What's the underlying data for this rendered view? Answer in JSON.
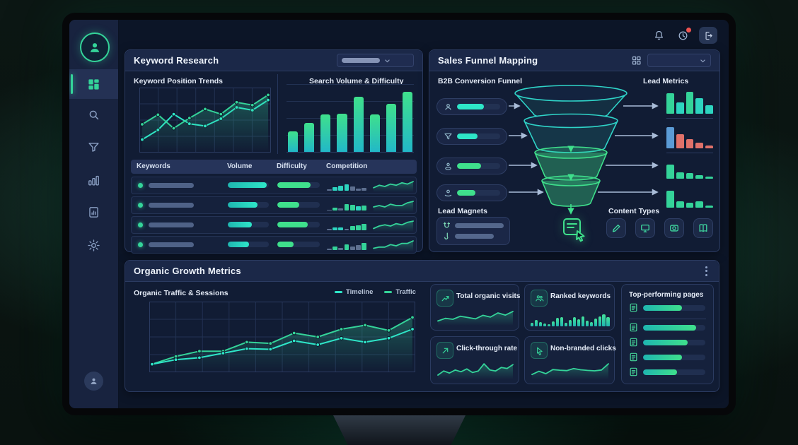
{
  "colors": {
    "teal": "#2dd4bf",
    "green": "#34d399",
    "bright-green": "#3fe08c",
    "blue": "#5b9bd5",
    "red": "#e0716a",
    "slate": "#5d6f8f"
  },
  "mini_colors": {
    "t": "#2dd4bf",
    "g": "#34d399",
    "s": "#5d6f8f"
  },
  "topbar": {
    "icons": [
      "bell",
      "history",
      "logout"
    ],
    "history_badge": true
  },
  "sidebar": {
    "items": [
      "profile",
      "dashboard",
      "search",
      "filter",
      "analytics",
      "reports",
      "settings"
    ],
    "active": "dashboard"
  },
  "panels": {
    "keyword_research": {
      "title": "Keyword Research",
      "filter_dropdown": {
        "value": ""
      },
      "sections": {
        "position_trends": "Keyword Position Trends",
        "volume_difficulty": "Search Volume & Difficulty"
      },
      "table": {
        "columns": [
          "Keywords",
          "Volume",
          "Difficulty",
          "Competition"
        ],
        "rows": [
          {
            "volume_pct": 95,
            "difficulty_pct": 78,
            "competition": {
              "values": [
                14,
                34,
                48,
                62,
                38,
                22,
                30
              ],
              "colors": [
                "s",
                "t",
                "t",
                "t",
                "s",
                "s",
                "s"
              ]
            },
            "trend": [
              3,
              5,
              4,
              6,
              5,
              7,
              6,
              8
            ]
          },
          {
            "volume_pct": 72,
            "difficulty_pct": 52,
            "competition": {
              "values": [
                10,
                28,
                18,
                58,
                52,
                42,
                50
              ],
              "colors": [
                "s",
                "g",
                "s",
                "g",
                "g",
                "t",
                "g"
              ]
            },
            "trend": [
              3,
              4,
              3,
              5,
              4,
              4,
              6,
              7
            ]
          },
          {
            "volume_pct": 58,
            "difficulty_pct": 72,
            "competition": {
              "values": [
                12,
                30,
                26,
                16,
                40,
                46,
                60
              ],
              "colors": [
                "s",
                "t",
                "t",
                "s",
                "g",
                "g",
                "g"
              ]
            },
            "trend": [
              2,
              4,
              5,
              4,
              6,
              5,
              7,
              8
            ]
          },
          {
            "volume_pct": 52,
            "difficulty_pct": 38,
            "competition": {
              "values": [
                12,
                34,
                22,
                52,
                34,
                44,
                64
              ],
              "colors": [
                "s",
                "g",
                "s",
                "g",
                "s",
                "s",
                "g"
              ]
            },
            "trend": [
              2,
              3,
              3,
              5,
              4,
              6,
              6,
              8
            ]
          }
        ]
      }
    },
    "sales_funnel": {
      "title": "Sales Funnel Mapping",
      "view_dropdown": {
        "value": ""
      },
      "funnel_label": "B2B Conversion Funnel",
      "lead_metrics_label": "Lead Metrics",
      "lead_magnets_label": "Lead Magnets",
      "content_types_label": "Content Types",
      "stages": [
        {
          "icon": "user",
          "pill_pct": 62,
          "color": "#2ee6c8"
        },
        {
          "icon": "filter",
          "pill_pct": 48,
          "color": "#2ee6c8"
        },
        {
          "icon": "lead",
          "pill_pct": 55,
          "color": "#3fe08c"
        },
        {
          "icon": "conversion",
          "pill_pct": 42,
          "color": "#3fe08c"
        }
      ],
      "lead_magnet_pills": [
        80,
        64
      ],
      "content_types": [
        "pencil",
        "display",
        "video",
        "book"
      ]
    },
    "organic": {
      "title": "Organic Growth Metrics",
      "chart_label": "Organic Traffic & Sessions",
      "cards": [
        {
          "label": "Total organic visits",
          "icon": "trend-up",
          "chart": "total_organic_visits_spark"
        },
        {
          "label": "Ranked keywords",
          "icon": "people",
          "chart": "ranked_keywords_bars"
        },
        {
          "label": "Click-through rate",
          "icon": "arrow-up-right",
          "chart": "click_through_rate_spark"
        },
        {
          "label": "Non-branded clicks",
          "icon": "pointer",
          "chart": "non_branded_clicks_spark"
        }
      ],
      "pages_card": {
        "label": "Top-performing pages",
        "rows": [
          62,
          85,
          72,
          62,
          55
        ]
      }
    }
  },
  "chart_data": [
    {
      "id": "keyword_position_trends",
      "type": "line",
      "title": "Keyword Position Trends",
      "grid": [
        7,
        4
      ],
      "ylim": [
        0,
        105
      ],
      "series": [
        {
          "name": "positions-secondary",
          "color": "#2ee6c8",
          "dots": true,
          "values": [
            18,
            35,
            63,
            46,
            42,
            55,
            75,
            70,
            88
          ]
        },
        {
          "name": "positions-primary",
          "color": "#34d399",
          "dots": true,
          "area": true,
          "values": [
            45,
            62,
            38,
            56,
            72,
            63,
            84,
            79,
            97
          ]
        }
      ]
    },
    {
      "id": "search_volume_difficulty",
      "type": "bar",
      "title": "Search Volume & Difficulty",
      "ylim": [
        0,
        100
      ],
      "gradient": [
        "#22b8c8",
        "#3fe08c"
      ],
      "values": [
        30,
        42,
        55,
        56,
        80,
        55,
        70,
        88
      ]
    },
    {
      "id": "organic_traffic_sessions",
      "type": "line",
      "title": "Organic Traffic & Sessions",
      "grid": [
        10,
        4
      ],
      "ylim": [
        0,
        100
      ],
      "legend": [
        "Timeline",
        "Traffic"
      ],
      "series": [
        {
          "name": "Traffic",
          "color": "#34d399",
          "dots": true,
          "area": true,
          "values": [
            8,
            20,
            28,
            28,
            42,
            40,
            56,
            50,
            62,
            68,
            60,
            80
          ]
        },
        {
          "name": "Timeline",
          "color": "#2ee6c8",
          "dots": true,
          "values": [
            8,
            15,
            18,
            25,
            32,
            31,
            44,
            38,
            48,
            42,
            48,
            62
          ]
        }
      ]
    },
    {
      "id": "lead_metrics",
      "type": "bar-group",
      "charts": [
        {
          "values": [
            80,
            45,
            85,
            62,
            32
          ],
          "colors": [
            "#34d399",
            "#2dd4bf",
            "#34d399",
            "#2dd4bf",
            "#2dd4bf"
          ]
        },
        {
          "values": [
            82,
            55,
            35,
            22,
            12
          ],
          "colors": [
            "#5b9bd5",
            "#e0716a",
            "#e0716a",
            "#e0716a",
            "#e0716a"
          ]
        },
        {
          "values": [
            68,
            30,
            28,
            16,
            10
          ],
          "colors": [
            "#34d399",
            "#34d399",
            "#34d399",
            "#34d399",
            "#34d399"
          ]
        },
        {
          "values": [
            72,
            26,
            22,
            26,
            10
          ],
          "colors": [
            "#34d399",
            "#34d399",
            "#34d399",
            "#34d399",
            "#34d399"
          ]
        }
      ]
    },
    {
      "id": "total_organic_visits_spark",
      "type": "spark",
      "color": "#34d399",
      "values": [
        18,
        30,
        26,
        40,
        34,
        28,
        44,
        36,
        55,
        45,
        62
      ]
    },
    {
      "id": "ranked_keywords_bars",
      "type": "bar",
      "gradient": [
        "#1fb6b0",
        "#45e39a"
      ],
      "values": [
        20,
        35,
        25,
        14,
        10,
        28,
        45,
        50,
        20,
        34,
        50,
        40,
        55,
        30,
        24,
        44,
        55,
        65,
        50
      ]
    },
    {
      "id": "click_through_rate_spark",
      "type": "spark",
      "color": "#34d399",
      "values": [
        14,
        30,
        22,
        34,
        27,
        38,
        24,
        30,
        58,
        34,
        30,
        44,
        40,
        55
      ]
    },
    {
      "id": "non_branded_clicks_spark",
      "type": "spark",
      "color": "#34d399",
      "values": [
        20,
        36,
        24,
        44,
        41,
        39,
        49,
        43,
        40,
        38,
        42,
        72
      ]
    }
  ]
}
